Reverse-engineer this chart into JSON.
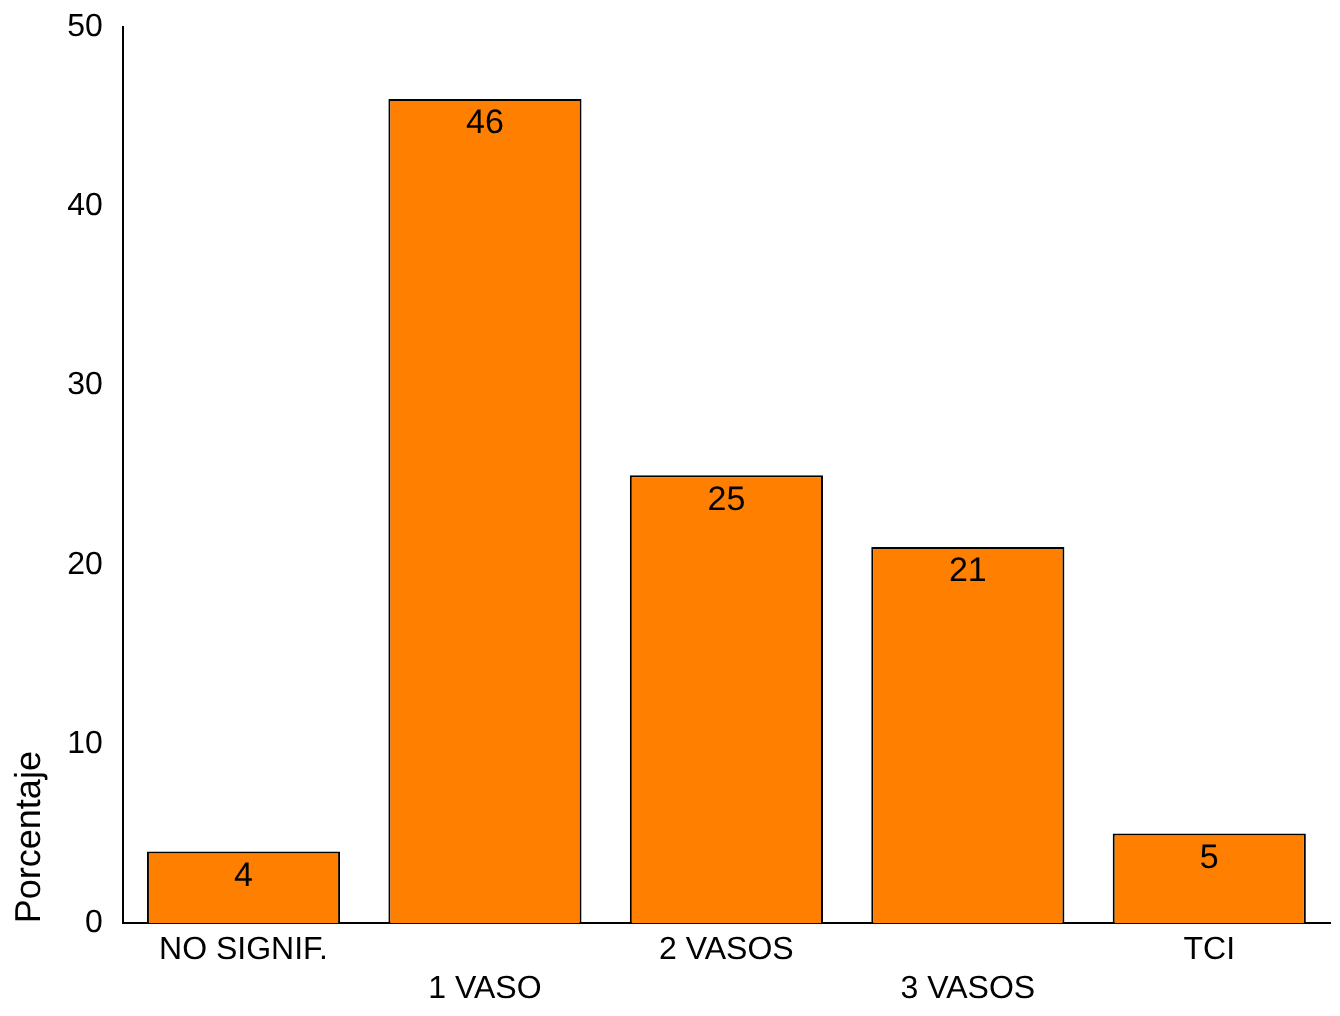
{
  "chart_data": {
    "type": "bar",
    "ylabel": "Porcentaje",
    "categories": [
      "NO SIGNIF.",
      "1 VASO",
      "2 VASOS",
      "3 VASOS",
      "TCI"
    ],
    "values": [
      4,
      46,
      25,
      21,
      5
    ],
    "color": "#ff8000",
    "ylim": [
      0,
      50
    ],
    "yticks": [
      0,
      10,
      20,
      30,
      40,
      50
    ],
    "grid": false,
    "data_labels": true,
    "legend": false
  }
}
